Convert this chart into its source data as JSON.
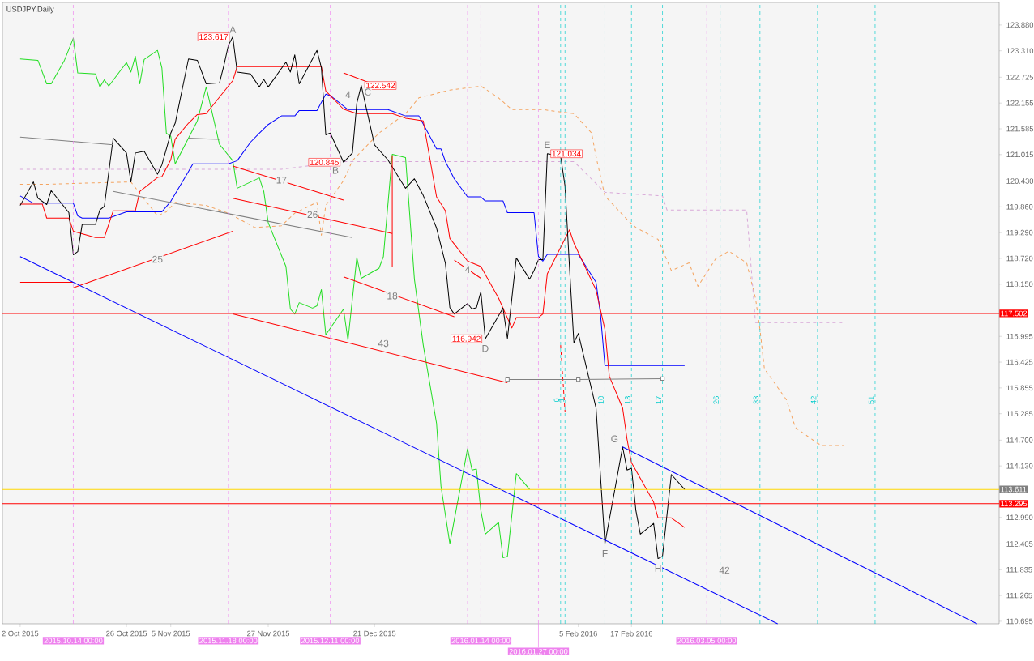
{
  "chart_data": {
    "type": "line",
    "title": "USDJPY,Daily",
    "xlim": [
      "2015-09-28",
      "2016-05-10"
    ],
    "ylim": [
      110.64,
      124.38
    ],
    "xticks": [
      {
        "value": "2015-10-02",
        "label": "2 Oct 2015"
      },
      {
        "value": "2015-10-26",
        "label": "26 Oct 2015"
      },
      {
        "value": "2015-11-05",
        "label": "5 Nov 2015"
      },
      {
        "value": "2015-11-27",
        "label": "27 Nov 2015"
      },
      {
        "value": "2015-12-21",
        "label": "21 Dec 2015"
      },
      {
        "value": "2016-02-05",
        "label": "5 Feb 2016"
      },
      {
        "value": "2016-02-17",
        "label": "17 Feb 2016"
      }
    ],
    "yticks": [
      {
        "value": 110.695,
        "label": "110.695"
      },
      {
        "value": 111.265,
        "label": "111.265"
      },
      {
        "value": 111.835,
        "label": "111.835"
      },
      {
        "value": 112.405,
        "label": "112.405"
      },
      {
        "value": 112.99,
        "label": "112.990"
      },
      {
        "value": 114.13,
        "label": "114.130"
      },
      {
        "value": 114.7,
        "label": "114.700"
      },
      {
        "value": 115.285,
        "label": "115.285"
      },
      {
        "value": 115.855,
        "label": "115.855"
      },
      {
        "value": 116.425,
        "label": "116.425"
      },
      {
        "value": 116.995,
        "label": "116.995"
      },
      {
        "value": 118.15,
        "label": "118.150"
      },
      {
        "value": 118.72,
        "label": "118.720"
      },
      {
        "value": 119.29,
        "label": "119.290"
      },
      {
        "value": 119.86,
        "label": "119.860"
      },
      {
        "value": 120.43,
        "label": "120.430"
      },
      {
        "value": 121.015,
        "label": "121.015"
      },
      {
        "value": 121.585,
        "label": "121.585"
      },
      {
        "value": 122.155,
        "label": "122.155"
      },
      {
        "value": 122.725,
        "label": "122.725"
      },
      {
        "value": 123.31,
        "label": "123.310"
      },
      {
        "value": 123.88,
        "label": "123.880"
      }
    ],
    "series": [
      {
        "color": "#f4a460",
        "line_style": "dashed",
        "x": [
          "2015-10-02",
          "2015-10-09",
          "2015-10-19",
          "2015-10-27",
          "2015-11-02",
          "2015-11-04",
          "2015-11-06",
          "2015-11-13",
          "2015-11-18",
          "2015-11-24",
          "2015-11-30",
          "2015-12-03",
          "2015-12-08",
          "2015-12-09",
          "2015-12-10",
          "2015-12-14",
          "2015-12-16",
          "2015-12-22",
          "2015-12-28",
          "2015-12-31",
          "2016-01-07",
          "2016-01-14",
          "2016-01-18",
          "2016-01-21",
          "2016-01-28",
          "2016-02-04",
          "2016-02-08",
          "2016-02-09",
          "2016-02-11",
          "2016-02-16",
          "2016-02-18",
          "2016-02-23",
          "2016-02-26",
          "2016-03-01",
          "2016-03-03",
          "2016-03-07",
          "2016-03-10",
          "2016-03-14",
          "2016-03-16",
          "2016-03-17",
          "2016-03-18",
          "2016-03-23",
          "2016-03-25",
          "2016-03-30",
          "2016-03-31",
          "2016-04-05"
        ],
        "values": [
          120.36,
          120.36,
          120.39,
          120.41,
          119.66,
          119.75,
          119.96,
          119.89,
          119.72,
          119.4,
          119.44,
          119.72,
          119.96,
          119.23,
          119.89,
          120.44,
          120.88,
          121.49,
          121.92,
          122.27,
          122.44,
          122.53,
          122.27,
          122.01,
          122.01,
          121.92,
          121.49,
          120.97,
          120.1,
          119.58,
          119.4,
          119.14,
          118.45,
          118.62,
          118.1,
          118.71,
          118.88,
          118.62,
          117.84,
          117.15,
          116.28,
          115.59,
          114.98,
          114.63,
          114.58,
          114.58
        ]
      },
      {
        "color": "#d8a8d8",
        "line_style": "dashed",
        "x": [
          "2015-10-02",
          "2015-11-30",
          "2015-12-14",
          "2016-02-04",
          "2016-02-11",
          "2016-02-24",
          "2016-02-25",
          "2016-03-14",
          "2016-03-16",
          "2016-04-05"
        ],
        "values": [
          120.69,
          120.69,
          120.86,
          120.86,
          120.18,
          120.1,
          119.79,
          119.79,
          117.3,
          117.3
        ]
      },
      {
        "color": "#22dd22",
        "x": [
          "2015-10-02",
          "2015-10-06",
          "2015-10-08",
          "2015-10-09",
          "2015-10-12",
          "2015-10-14",
          "2015-10-15",
          "2015-10-19",
          "2015-10-20",
          "2015-10-21",
          "2015-10-22",
          "2015-10-26",
          "2015-10-27",
          "2015-10-28",
          "2015-10-29",
          "2015-10-30",
          "2015-11-02",
          "2015-11-03",
          "2015-11-04",
          "2015-11-05",
          "2015-11-06",
          "2015-11-11",
          "2015-11-13",
          "2015-11-16",
          "2015-11-19",
          "2015-11-20",
          "2015-11-25",
          "2015-11-26",
          "2015-11-27",
          "2015-12-01",
          "2015-12-02",
          "2015-12-03",
          "2015-12-04",
          "2015-12-07",
          "2015-12-08",
          "2015-12-09",
          "2015-12-10",
          "2015-12-14",
          "2015-12-15",
          "2015-12-17",
          "2015-12-18",
          "2015-12-22",
          "2015-12-23",
          "2015-12-25",
          "2015-12-28",
          "2015-12-30",
          "2016-01-01",
          "2016-01-04",
          "2016-01-05",
          "2016-01-07",
          "2016-01-11",
          "2016-01-12",
          "2016-01-13",
          "2016-01-14",
          "2016-01-15",
          "2016-01-18",
          "2016-01-19",
          "2016-01-20",
          "2016-01-22",
          "2016-01-25"
        ],
        "values": [
          123.13,
          123.1,
          122.58,
          122.58,
          123.1,
          123.59,
          122.82,
          122.8,
          122.51,
          122.67,
          122.53,
          123.05,
          122.84,
          123.19,
          122.58,
          123.12,
          123.32,
          122.93,
          121.49,
          121.42,
          120.81,
          121.76,
          122.51,
          121.24,
          120.88,
          120.27,
          120.5,
          120.2,
          119.51,
          118.54,
          117.6,
          117.49,
          117.74,
          117.62,
          117.67,
          118.03,
          117.03,
          117.6,
          116.91,
          118.74,
          118.28,
          118.5,
          118.76,
          121.02,
          120.95,
          118.26,
          116.8,
          115.07,
          113.68,
          112.41,
          114.51,
          114.04,
          114.06,
          113.14,
          112.62,
          112.88,
          112.1,
          112.13,
          113.96,
          113.61
        ]
      },
      {
        "color": "#0000ff",
        "x": [
          "2015-10-02",
          "2015-10-05",
          "2015-10-14",
          "2015-10-15",
          "2015-10-16",
          "2015-10-22",
          "2015-10-26",
          "2015-11-03",
          "2015-11-05",
          "2015-11-09",
          "2015-11-10",
          "2015-11-18",
          "2015-11-20",
          "2015-11-23",
          "2015-11-25",
          "2015-11-27",
          "2015-11-30",
          "2015-12-03",
          "2015-12-04",
          "2015-12-08",
          "2015-12-10",
          "2015-12-11",
          "2015-12-15",
          "2015-12-24",
          "2015-12-28",
          "2015-12-31",
          "2016-01-04",
          "2016-01-05",
          "2016-01-06",
          "2016-01-08",
          "2016-01-11",
          "2016-01-14",
          "2016-01-15",
          "2016-01-19",
          "2016-01-20",
          "2016-01-26",
          "2016-01-27",
          "2016-01-28",
          "2016-01-29",
          "2016-02-05",
          "2016-02-09",
          "2016-02-10",
          "2016-02-11",
          "2016-02-29"
        ],
        "values": [
          120.1,
          119.94,
          119.94,
          119.66,
          119.61,
          119.61,
          119.75,
          119.75,
          119.98,
          120.64,
          120.81,
          120.81,
          120.88,
          121.29,
          121.49,
          121.68,
          121.87,
          121.87,
          121.99,
          121.99,
          122.35,
          122.32,
          122.01,
          122.01,
          121.87,
          121.87,
          121.14,
          121.14,
          120.86,
          120.48,
          120.08,
          120.08,
          119.99,
          119.99,
          119.73,
          119.73,
          118.76,
          118.66,
          118.81,
          118.81,
          118.19,
          117.49,
          116.35,
          116.35
        ]
      },
      {
        "color": "#ff0000",
        "x": [
          "2015-10-02",
          "2015-10-07",
          "2015-10-08",
          "2015-10-13",
          "2015-10-14",
          "2015-10-19",
          "2015-10-21",
          "2015-10-23",
          "2015-10-28",
          "2015-10-29",
          "2015-11-02",
          "2015-11-03",
          "2015-11-05",
          "2015-11-06",
          "2015-11-09",
          "2015-11-11",
          "2015-11-13",
          "2015-11-19",
          "2015-11-20",
          "2015-12-09",
          "2015-12-10",
          "2015-12-14",
          "2015-12-17",
          "2015-12-25",
          "2015-12-28",
          "2016-01-01",
          "2016-01-04",
          "2016-01-06",
          "2016-01-07",
          "2016-01-11",
          "2016-01-14",
          "2016-01-18",
          "2016-01-21",
          "2016-01-22",
          "2016-01-27",
          "2016-01-28",
          "2016-01-29",
          "2016-02-03",
          "2016-02-04",
          "2016-02-09",
          "2016-02-11",
          "2016-02-12",
          "2016-02-15",
          "2016-02-16",
          "2016-02-17",
          "2016-02-18",
          "2016-02-22",
          "2016-02-23",
          "2016-02-26",
          "2016-02-29"
        ],
        "values": [
          119.92,
          119.92,
          119.61,
          119.61,
          119.32,
          119.18,
          119.18,
          119.77,
          119.77,
          120.2,
          120.51,
          120.53,
          120.9,
          121.36,
          121.71,
          121.9,
          121.92,
          122.65,
          122.96,
          122.96,
          122.42,
          122.02,
          121.92,
          121.92,
          121.82,
          121.76,
          120.08,
          119.77,
          119.16,
          118.66,
          118.54,
          117.84,
          117.18,
          117.41,
          117.41,
          117.49,
          118.38,
          119.35,
          119.06,
          118.02,
          117.15,
          116.11,
          115.41,
          114.72,
          114.2,
          114.03,
          113.33,
          112.98,
          112.98,
          112.77
        ]
      },
      {
        "color": "#000000",
        "x": [
          "2015-10-02",
          "2015-10-05",
          "2015-10-06",
          "2015-10-08",
          "2015-10-09",
          "2015-10-13",
          "2015-10-14",
          "2015-10-15",
          "2015-10-16",
          "2015-10-19",
          "2015-10-20",
          "2015-10-21",
          "2015-10-23",
          "2015-10-26",
          "2015-10-27",
          "2015-10-28",
          "2015-10-30",
          "2015-11-02",
          "2015-11-03",
          "2015-11-05",
          "2015-11-06",
          "2015-11-09",
          "2015-11-11",
          "2015-11-13",
          "2015-11-16",
          "2015-11-17",
          "2015-11-18",
          "2015-11-19",
          "2015-11-20",
          "2015-11-23",
          "2015-11-25",
          "2015-11-26",
          "2015-11-27",
          "2015-12-01",
          "2015-12-02",
          "2015-12-03",
          "2015-12-04",
          "2015-12-07",
          "2015-12-08",
          "2015-12-09",
          "2015-12-10",
          "2015-12-11",
          "2015-12-14",
          "2015-12-16",
          "2015-12-17",
          "2015-12-18",
          "2015-12-21",
          "2015-12-24",
          "2015-12-28",
          "2015-12-30",
          "2016-01-01",
          "2016-01-04",
          "2016-01-06",
          "2016-01-07",
          "2016-01-08",
          "2016-01-11",
          "2016-01-12",
          "2016-01-13",
          "2016-01-14",
          "2016-01-15",
          "2016-01-19",
          "2016-01-20",
          "2016-01-22",
          "2016-01-25",
          "2016-01-26",
          "2016-01-27",
          "2016-01-28",
          "2016-01-29",
          "2016-02-01",
          "2016-02-02",
          "2016-02-03",
          "2016-02-04",
          "2016-02-05",
          "2016-02-09",
          "2016-02-11",
          "2016-02-15",
          "2016-02-16",
          "2016-02-17",
          "2016-02-18",
          "2016-02-19",
          "2016-02-22",
          "2016-02-23",
          "2016-02-24",
          "2016-02-26",
          "2016-02-29"
        ],
        "values": [
          119.89,
          120.41,
          120.05,
          119.91,
          120.22,
          119.73,
          118.8,
          118.87,
          119.47,
          119.47,
          119.79,
          119.87,
          121.38,
          121.05,
          120.41,
          121.05,
          121.09,
          120.58,
          120.79,
          121.49,
          121.71,
          123.13,
          123.1,
          122.58,
          122.6,
          122.99,
          123.43,
          123.617,
          122.84,
          122.8,
          122.51,
          122.68,
          122.51,
          123.06,
          122.84,
          123.22,
          122.58,
          123.13,
          123.32,
          122.94,
          121.45,
          121.49,
          120.845,
          121.05,
          122.15,
          122.542,
          121.23,
          120.9,
          120.27,
          120.48,
          120.11,
          119.39,
          118.61,
          117.63,
          117.49,
          117.72,
          117.6,
          117.63,
          117.98,
          116.942,
          117.62,
          116.95,
          118.73,
          118.26,
          118.45,
          118.69,
          118.69,
          121.034,
          120.98,
          120.32,
          118.54,
          116.85,
          117.06,
          115.41,
          112.41,
          114.55,
          114.04,
          114.08,
          113.14,
          112.62,
          112.86,
          112.08,
          112.13,
          113.94,
          113.61
        ]
      },
      {
        "color": "#ff0000",
        "x": [
          "2015-10-02",
          "2015-10-14"
        ],
        "values": [
          118.19,
          118.19
        ]
      },
      {
        "color": "#ff0000",
        "x": [
          "2015-10-14",
          "2015-11-19"
        ],
        "values": [
          118.07,
          119.32
        ]
      },
      {
        "color": "#ff0000",
        "x": [
          "2015-11-19",
          "2015-12-14"
        ],
        "values": [
          120.76,
          120.01
        ]
      },
      {
        "color": "#ff0000",
        "x": [
          "2015-11-19",
          "2015-12-25"
        ],
        "values": [
          120.05,
          119.27
        ]
      },
      {
        "color": "#ff0000",
        "x": [
          "2015-12-14",
          "2015-12-21"
        ],
        "values": [
          122.82,
          122.56
        ]
      },
      {
        "color": "#ff0000",
        "x": [
          "2015-12-14",
          "2016-01-08"
        ],
        "values": [
          118.31,
          117.43
        ]
      },
      {
        "color": "#ff0000",
        "x": [
          "2015-11-19",
          "2016-01-20"
        ],
        "values": [
          117.49,
          115.97
        ]
      },
      {
        "color": "#ff0000",
        "x": [
          "2016-01-08",
          "2016-01-14"
        ],
        "values": [
          118.68,
          118.28
        ]
      },
      {
        "color": "#ff0000",
        "x": [
          "2015-12-25",
          "2015-12-25"
        ],
        "values": [
          121.0,
          118.54
        ]
      },
      {
        "color": "#ff0000",
        "line_style": "dashed",
        "x": [
          "2016-02-01",
          "2016-02-02"
        ],
        "values": [
          116.8,
          115.33
        ]
      },
      {
        "color": "#808080",
        "x": [
          "2015-10-02",
          "2015-10-23"
        ],
        "values": [
          121.4,
          121.23
        ]
      },
      {
        "color": "#808080",
        "x": [
          "2015-11-09",
          "2015-11-16"
        ],
        "values": [
          121.38,
          121.35
        ]
      },
      {
        "color": "#808080",
        "x": [
          "2015-10-23",
          "2015-12-16"
        ],
        "values": [
          120.2,
          119.18
        ]
      },
      {
        "color": "#808080",
        "marker": "square",
        "x": [
          "2016-01-20",
          "2016-02-05",
          "2016-02-24"
        ],
        "values": [
          116.04,
          116.04,
          116.06
        ]
      },
      {
        "color": "#0000ff",
        "x": [
          "2015-10-02",
          "2016-03-21"
        ],
        "values": [
          118.76,
          110.64
        ]
      },
      {
        "color": "#0000ff",
        "x": [
          "2016-02-15",
          "2016-05-05"
        ],
        "values": [
          114.55,
          110.64
        ]
      }
    ],
    "ref_lines": [
      {
        "axis": "y",
        "value": 117.502,
        "label": "117.502",
        "color": "#ff0000"
      },
      {
        "axis": "y",
        "value": 113.611,
        "label": "113.611",
        "color": "#ffd700"
      },
      {
        "axis": "y",
        "value": 113.295,
        "label": "113.295",
        "color": "#ff0000"
      },
      {
        "axis": "x",
        "value": "2015-10-14",
        "label": "2015.10.14 00:00",
        "color": "#ee82ee",
        "line_style": "dashed"
      },
      {
        "axis": "x",
        "value": "2015-11-18",
        "label": "2015.11.18 00:00",
        "color": "#ee82ee",
        "line_style": "dashed"
      },
      {
        "axis": "x",
        "value": "2015-12-11",
        "label": "2015.12.11 00:00",
        "color": "#ee82ee",
        "line_style": "dashed"
      },
      {
        "axis": "x",
        "value": "2016-01-11",
        "color": "#ee82ee",
        "line_style": "dashed"
      },
      {
        "axis": "x",
        "value": "2016-01-14",
        "label": "2016.01.14 00:00",
        "color": "#ee82ee",
        "line_style": "dashed"
      },
      {
        "axis": "x",
        "value": "2016-01-27",
        "label": "2016.01.27 00:00",
        "color": "#ee82ee",
        "line_style": "dashed"
      },
      {
        "axis": "x",
        "value": "2016-03-05",
        "label": "2016.03.05 00:00",
        "color": "#ee82ee",
        "line_style": "dashed"
      },
      {
        "axis": "x",
        "value": "2016-02-01",
        "label": "0",
        "color": "#00cccc",
        "line_style": "dashed"
      },
      {
        "axis": "x",
        "value": "2016-02-02",
        "label": "1",
        "color": "#00cccc",
        "line_style": "dashed"
      },
      {
        "axis": "x",
        "value": "2016-02-11",
        "label": "10",
        "color": "#00cccc",
        "line_style": "dashed"
      },
      {
        "axis": "x",
        "value": "2016-02-17",
        "label": "13",
        "color": "#00cccc",
        "line_style": "dashed"
      },
      {
        "axis": "x",
        "value": "2016-02-24",
        "label": "17",
        "color": "#00cccc",
        "line_style": "dashed"
      },
      {
        "axis": "x",
        "value": "2016-03-08",
        "label": "26",
        "color": "#00cccc",
        "line_style": "dashed"
      },
      {
        "axis": "x",
        "value": "2016-03-17",
        "label": "33",
        "color": "#00cccc",
        "line_style": "dashed"
      },
      {
        "axis": "x",
        "value": "2016-03-30",
        "label": "42",
        "color": "#00cccc",
        "line_style": "dashed"
      },
      {
        "axis": "x",
        "value": "2016-04-12",
        "label": "51",
        "color": "#00cccc",
        "line_style": "dashed"
      }
    ],
    "annotations": [
      {
        "text": "123.617",
        "x": "2015-11-19",
        "y": 123.617
      },
      {
        "text": "122.542",
        "x": "2015-12-18",
        "y": 122.542
      },
      {
        "text": "120.845",
        "x": "2015-12-14",
        "y": 120.845
      },
      {
        "text": "116.942",
        "x": "2016-01-15",
        "y": 116.942
      },
      {
        "text": "121.034",
        "x": "2016-01-29",
        "y": 121.034
      },
      {
        "text": "A",
        "x": "2015-11-19",
        "y": 123.617
      },
      {
        "text": "B",
        "x": "2015-12-14",
        "y": 120.845
      },
      {
        "text": "C",
        "x": "2015-12-18",
        "y": 122.542
      },
      {
        "text": "D",
        "x": "2016-01-15",
        "y": 116.942
      },
      {
        "text": "E",
        "x": "2016-01-29",
        "y": 121.034
      },
      {
        "text": "F",
        "x": "2016-02-11",
        "y": 112.41
      },
      {
        "text": "G",
        "x": "2016-02-15",
        "y": 114.55
      },
      {
        "text": "H",
        "x": "2016-02-23",
        "y": 112.08
      },
      {
        "text": "25",
        "x": "2015-11-02",
        "y": 118.7
      },
      {
        "text": "17",
        "x": "2015-11-30",
        "y": 120.45
      },
      {
        "text": "26",
        "x": "2015-12-07",
        "y": 119.69
      },
      {
        "text": "4",
        "x": "2015-12-15",
        "y": 122.77
      },
      {
        "text": "4",
        "x": "2016-01-11",
        "y": 118.58
      },
      {
        "text": "18",
        "x": "2015-12-25",
        "y": 117.89
      },
      {
        "text": "43",
        "x": "2015-12-23",
        "y": 116.66
      },
      {
        "text": "42",
        "x": "2016-03-09",
        "y": 111.18
      }
    ]
  }
}
